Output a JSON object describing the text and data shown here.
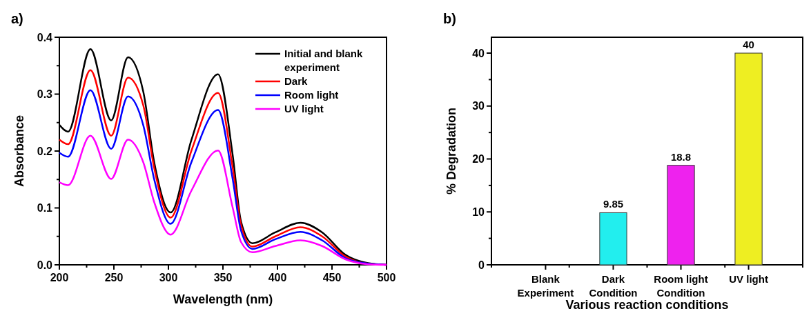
{
  "chart_data": [
    {
      "type": "line",
      "title": "a)",
      "xlabel": "Wavelength (nm)",
      "ylabel": "Absorbance",
      "xlim": [
        200,
        500
      ],
      "ylim": [
        0,
        0.4
      ],
      "xticks": [
        200,
        {
          "value": 225,
          "label": null
        },
        250,
        {
          "value": 275,
          "label": null
        },
        300,
        {
          "value": 325,
          "label": null
        },
        350,
        {
          "value": 375,
          "label": null
        },
        400,
        {
          "value": 425,
          "label": null
        },
        450,
        {
          "value": 475,
          "label": null
        },
        500
      ],
      "yticks": [
        {
          "value": 0,
          "label": "0.0"
        },
        {
          "value": 0.05,
          "label": null
        },
        0.1,
        {
          "value": 0.15,
          "label": null
        },
        0.2,
        {
          "value": 0.25,
          "label": null
        },
        0.3,
        {
          "value": 0.35,
          "label": null
        },
        0.4
      ],
      "legend": "top right",
      "grid": false,
      "x": [
        200,
        208,
        228.5,
        247.5,
        263,
        277,
        287,
        302,
        321,
        345.5,
        359,
        366.6,
        377,
        398,
        421,
        441,
        462,
        483,
        500
      ],
      "series": [
        {
          "name": "Initial and blank experiment",
          "color": "#000000",
          "values": [
            0.246,
            0.234,
            0.379,
            0.254,
            0.365,
            0.304,
            0.18,
            0.092,
            0.219,
            0.335,
            0.192,
            0.076,
            0.038,
            0.057,
            0.074,
            0.057,
            0.018,
            0.003,
            0.0
          ]
        },
        {
          "name": "Dark",
          "color": "#ff0000",
          "values": [
            0.22,
            0.212,
            0.342,
            0.227,
            0.329,
            0.28,
            0.17,
            0.083,
            0.2,
            0.302,
            0.17,
            0.07,
            0.032,
            0.05,
            0.066,
            0.05,
            0.015,
            0.002,
            0.0
          ]
        },
        {
          "name": "Room light",
          "color": "#0000ff",
          "values": [
            0.197,
            0.19,
            0.307,
            0.204,
            0.296,
            0.245,
            0.15,
            0.072,
            0.18,
            0.272,
            0.15,
            0.06,
            0.028,
            0.045,
            0.058,
            0.043,
            0.012,
            0.002,
            0.0
          ]
        },
        {
          "name": "UV light",
          "color": "#ff00ff",
          "values": [
            0.145,
            0.14,
            0.227,
            0.151,
            0.22,
            0.18,
            0.11,
            0.053,
            0.13,
            0.201,
            0.1,
            0.04,
            0.022,
            0.033,
            0.043,
            0.033,
            0.01,
            0.001,
            0.0
          ]
        }
      ]
    },
    {
      "type": "bar",
      "title": "b)",
      "xlabel": "Various reaction conditions",
      "ylabel": "% Degradation",
      "ylim": [
        0,
        43
      ],
      "yticks": [
        0,
        {
          "value": 5,
          "label": null
        },
        10,
        {
          "value": 15,
          "label": null
        },
        20,
        {
          "value": 25,
          "label": null
        },
        30,
        {
          "value": 35,
          "label": null
        },
        40
      ],
      "categories": [
        "Blank Experiment",
        "Dark Condition",
        "Room light Condition",
        "UV light"
      ],
      "values": [
        0,
        9.85,
        18.8,
        40
      ],
      "colors": [
        "#cccccc",
        "#22eeee",
        "#ee22ee",
        "#eeee22"
      ],
      "value_labels": [
        null,
        "9.85",
        "18.8",
        "40"
      ],
      "grid": false
    }
  ]
}
